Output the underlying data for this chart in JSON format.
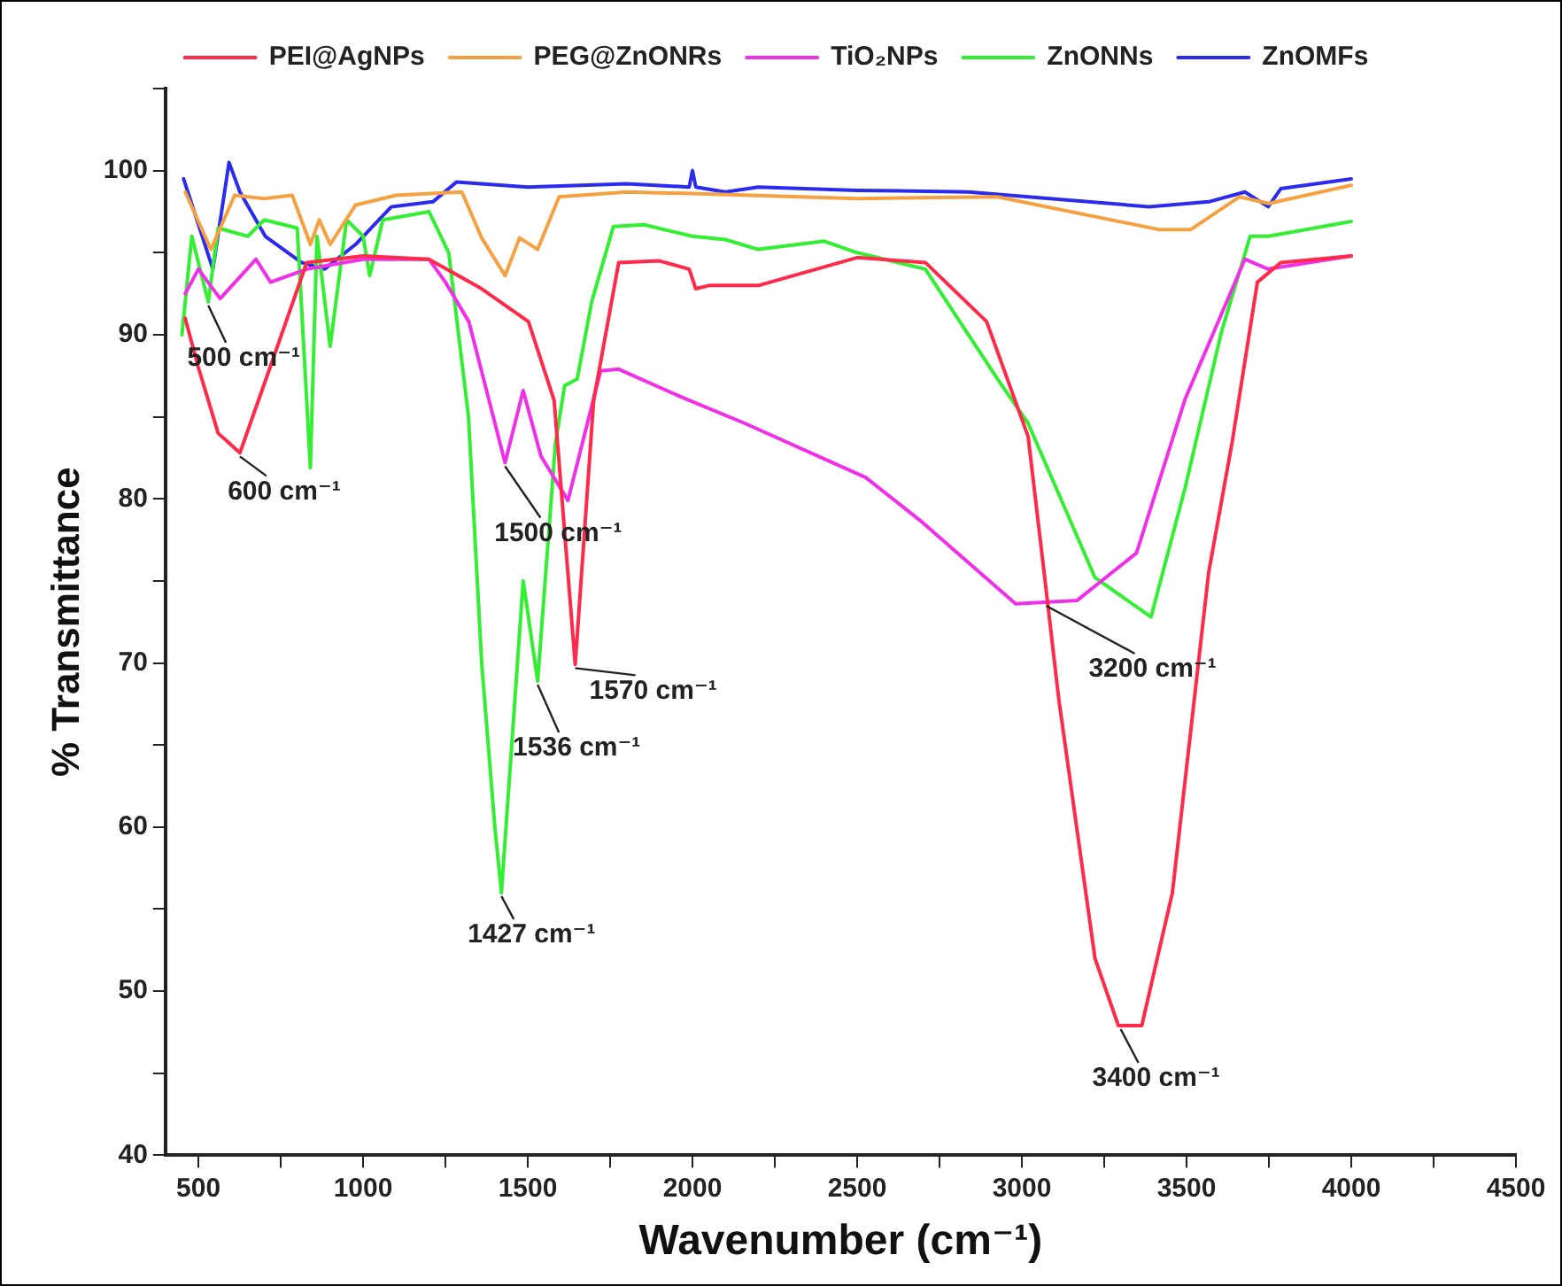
{
  "chart_data": {
    "type": "line",
    "xlabel": "Wavenumber (cm⁻¹)",
    "ylabel": "% Transmittance",
    "xlim": [
      400,
      4500
    ],
    "ylim": [
      40,
      105
    ],
    "xticks": [
      500,
      {
        "value": 750,
        "label": null
      },
      1000,
      {
        "value": 1250,
        "label": null
      },
      1500,
      {
        "value": 1750,
        "label": null
      },
      2000,
      {
        "value": 2250,
        "label": null
      },
      2500,
      {
        "value": 2750,
        "label": null
      },
      3000,
      {
        "value": 3250,
        "label": null
      },
      3500,
      {
        "value": 3750,
        "label": null
      },
      4000,
      {
        "value": 4250,
        "label": null
      },
      4500
    ],
    "yticks": [
      40,
      {
        "value": 45,
        "label": null
      },
      50,
      {
        "value": 55,
        "label": null
      },
      60,
      {
        "value": 65,
        "label": null
      },
      70,
      {
        "value": 75,
        "label": null
      },
      80,
      {
        "value": 85,
        "label": null
      },
      90,
      {
        "value": 95,
        "label": null
      },
      100,
      {
        "value": 105,
        "label": null
      }
    ],
    "grid": false,
    "legend": "top",
    "marker": "none",
    "line_style": "solid",
    "series": [
      {
        "name": "PEI@AgNPs",
        "color": "#ff2a4a",
        "x": [
          460,
          500,
          560,
          626,
          700,
          829,
          1000,
          1200,
          1360,
          1502,
          1580,
          1644,
          1700,
          1776,
          1900,
          1990,
          2010,
          2050,
          2200,
          2500,
          2707,
          2893,
          3019,
          3074,
          3112,
          3222,
          3293,
          3364,
          3457,
          3567,
          3638,
          3715,
          3786,
          4000
        ],
        "values": [
          91,
          88,
          84,
          82.8,
          87,
          94.4,
          94.8,
          94.6,
          92.8,
          90.8,
          86,
          69.9,
          86,
          94.4,
          94.5,
          94,
          92.8,
          93,
          93,
          94.7,
          94.4,
          90.8,
          83.8,
          74.4,
          67.8,
          52,
          47.9,
          47.9,
          56,
          75.5,
          83.4,
          93.2,
          94.4,
          94.8
        ]
      },
      {
        "name": "PEG@ZnONRs",
        "color": "#f5a142",
        "x": [
          460,
          538,
          610,
          700,
          785,
          840,
          867,
          900,
          977,
          1100,
          1300,
          1360,
          1431,
          1475,
          1530,
          1595,
          1800,
          2000,
          2500,
          2926,
          3419,
          3512,
          3660,
          3750,
          4000
        ],
        "values": [
          98.7,
          95.2,
          98.5,
          98.3,
          98.5,
          95.5,
          97,
          95.5,
          97.9,
          98.5,
          98.7,
          95.9,
          93.6,
          95.9,
          95.2,
          98.4,
          98.7,
          98.6,
          98.3,
          98.4,
          96.4,
          96.4,
          98.4,
          98,
          99.1
        ]
      },
      {
        "name": "TiO₂NPs",
        "color": "#f030e8",
        "x": [
          460,
          500,
          566,
          675,
          719,
          829,
          1000,
          1200,
          1250,
          1321,
          1431,
          1486,
          1540,
          1622,
          1721,
          1776,
          1978,
          2159,
          2526,
          2690,
          2981,
          3167,
          3348,
          3496,
          3677,
          3748,
          4000
        ],
        "values": [
          92.5,
          94,
          92.2,
          94.6,
          93.2,
          94,
          94.6,
          94.6,
          93.2,
          90.8,
          82.2,
          86.6,
          82.6,
          79.9,
          87.8,
          87.9,
          86.1,
          84.6,
          81.3,
          78.7,
          73.6,
          73.8,
          76.7,
          86.1,
          94.6,
          94,
          94.8
        ]
      },
      {
        "name": "ZnONNs",
        "color": "#33ee33",
        "x": [
          450,
          480,
          530,
          560,
          650,
          700,
          800,
          840,
          860,
          900,
          950,
          1000,
          1020,
          1060,
          1200,
          1260,
          1320,
          1360,
          1400,
          1420,
          1486,
          1530,
          1584,
          1612,
          1650,
          1694,
          1760,
          1853,
          2000,
          2100,
          2200,
          2400,
          2500,
          2707,
          2926,
          3019,
          3222,
          3392,
          3496,
          3605,
          3693,
          3748,
          4000
        ],
        "values": [
          90,
          96,
          92,
          96.5,
          96,
          97,
          96.5,
          81.9,
          96,
          89.3,
          97,
          96,
          93.6,
          97,
          97.5,
          95,
          85,
          70,
          60,
          56,
          75,
          68.9,
          83.4,
          86.9,
          87.3,
          92,
          96.6,
          96.7,
          96,
          95.8,
          95.2,
          95.7,
          95,
          94,
          87.3,
          84.6,
          75.2,
          72.8,
          80.7,
          90.1,
          96,
          96,
          96.9
        ]
      },
      {
        "name": "ZnOMFs",
        "color": "#2b2bf0",
        "x": [
          455,
          544,
          593,
          626,
          703,
          813,
          883,
          977,
          1086,
          1212,
          1283,
          1500,
          1800,
          1990,
          2000,
          2010,
          2100,
          2200,
          2500,
          2838,
          3386,
          3567,
          3677,
          3748,
          3786,
          4000
        ],
        "values": [
          99.5,
          94,
          100.5,
          98.7,
          96,
          94.4,
          94,
          95.5,
          97.8,
          98.1,
          99.3,
          99,
          99.2,
          99,
          100,
          99,
          98.7,
          99,
          98.8,
          98.7,
          97.8,
          98.1,
          98.7,
          97.8,
          98.9,
          99.5
        ]
      }
    ],
    "annotations": [
      {
        "text": "500 cm⁻¹",
        "x": 530,
        "y": 92
      },
      {
        "text": "600 cm⁻¹",
        "x": 626,
        "y": 82.8
      },
      {
        "text": "1500 cm⁻¹",
        "x": 1431,
        "y": 82.2
      },
      {
        "text": "1570 cm⁻¹",
        "x": 1644,
        "y": 69.9
      },
      {
        "text": "1536 cm⁻¹",
        "x": 1530,
        "y": 68.9
      },
      {
        "text": "1427 cm⁻¹",
        "x": 1420,
        "y": 56
      },
      {
        "text": "3200 cm⁻¹",
        "x": 3074,
        "y": 73.7
      },
      {
        "text": "3400 cm⁻¹",
        "x": 3300,
        "y": 47.9
      }
    ]
  }
}
